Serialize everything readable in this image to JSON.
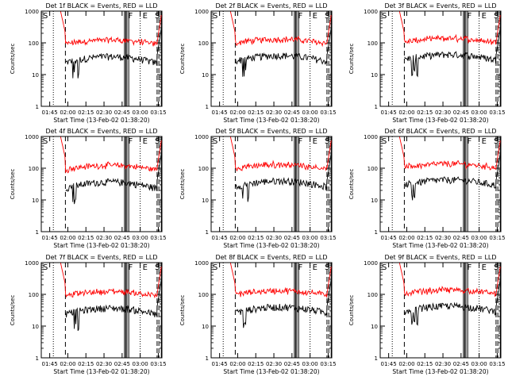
{
  "chart_data": {
    "type": "line",
    "time_axis": {
      "ticks": [
        "01:45",
        "02:00",
        "02:15",
        "02:30",
        "02:45",
        "03:00",
        "03:15"
      ],
      "label": "Start Time (13-Feb-02 01:38:20)",
      "range_minutes": [
        98,
        198
      ]
    },
    "y_axis": {
      "label": "Counts/sec",
      "scale": "log",
      "range": [
        1,
        1000
      ],
      "ticks": [
        "1",
        "10",
        "100",
        "1000"
      ]
    },
    "series": [
      {
        "name": "BLACK = Events",
        "color": "#000000",
        "approx_level_counts_per_sec": 40
      },
      {
        "name": "RED = LLD",
        "color": "#ff0000",
        "approx_level_counts_per_sec": 110
      }
    ],
    "panel_letters": [
      "S",
      "F",
      "E"
    ],
    "panels": [
      {
        "title": "Det 1f BLACK = Events, RED = LLD"
      },
      {
        "title": "Det 2f BLACK = Events, RED = LLD"
      },
      {
        "title": "Det 3f BLACK = Events, RED = LLD"
      },
      {
        "title": "Det 4f BLACK = Events, RED = LLD"
      },
      {
        "title": "Det 5f BLACK = Events, RED = LLD"
      },
      {
        "title": "Det 6f BLACK = Events, RED = LLD"
      },
      {
        "title": "Det 7f BLACK = Events, RED = LLD"
      },
      {
        "title": "Det 8f BLACK = Events, RED = LLD"
      },
      {
        "title": "Det 9f BLACK = Events, RED = LLD"
      }
    ]
  }
}
